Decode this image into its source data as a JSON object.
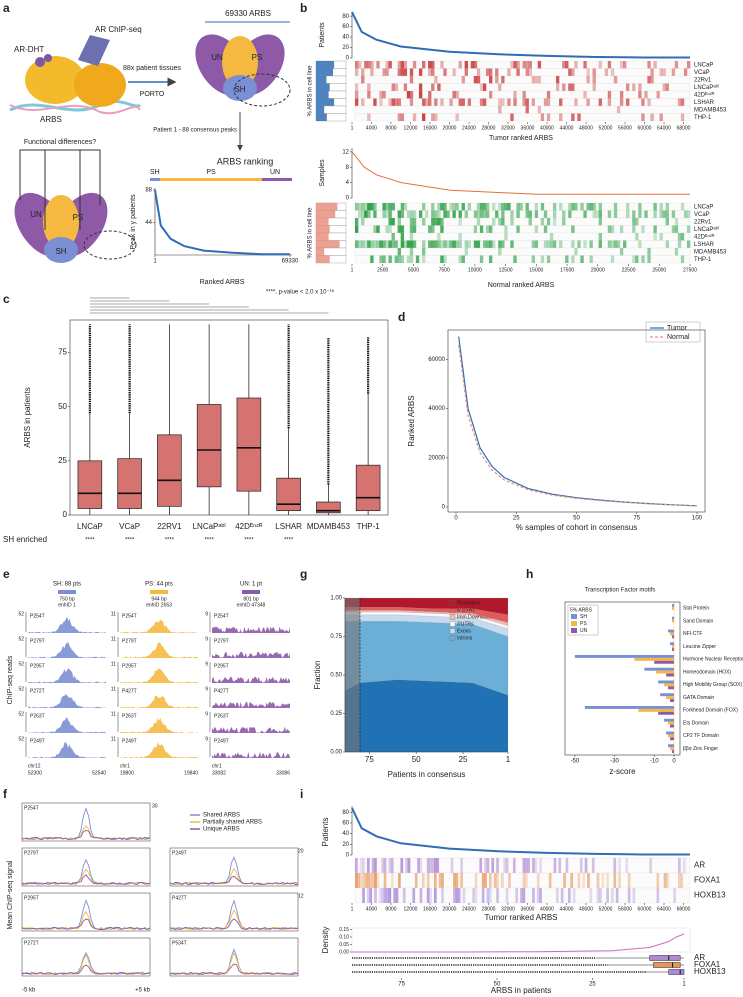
{
  "a": {
    "label": "a",
    "ar_chip": "AR ChIP-seq",
    "ar_dht": "AR-DHT",
    "arbs": "ARBS",
    "total": "69330 ARBS",
    "tissues": "88x patient tissues",
    "porto": "PORTO",
    "venn_top": [
      "UN",
      "PS",
      "SH"
    ],
    "venn_bottom": [
      "UN",
      "PS",
      "SH"
    ],
    "consensus": "Patient 1 - 88 consensus peaks",
    "functional": "Functional differences?",
    "ranking": "ARBS ranking",
    "bar_labels": [
      "SH",
      "PS",
      "UN"
    ],
    "y_label": "Peak in y patients",
    "x_label": "Ranked ARBS",
    "ylim": [
      0,
      88
    ],
    "yticks": [
      44,
      88
    ],
    "xlim": [
      1,
      69330
    ],
    "xticks": [
      1,
      69330
    ],
    "curve": {
      "x": [
        1,
        3000,
        8000,
        15000,
        25000,
        40000,
        55000,
        69330
      ],
      "y": [
        88,
        40,
        22,
        12,
        6,
        3,
        1,
        1
      ]
    }
  },
  "b": {
    "label": "b",
    "tumor": {
      "y_label": "Patients",
      "ylim": [
        0,
        88
      ],
      "yticks": [
        0,
        20,
        40,
        60,
        80
      ],
      "xlim": [
        1,
        69330
      ],
      "xticks": [
        1,
        4000,
        8000,
        12000,
        16000,
        20000,
        24000,
        28000,
        32000,
        36000,
        40000,
        44000,
        48000,
        52000,
        56000,
        60000,
        64000,
        68000
      ],
      "x_label": "Tumor ranked ARBS",
      "heat_label": "% ARBS in cell line",
      "cell_lines": [
        "LNCaP",
        "VCaP",
        "22Rv1",
        "LNCaPᵃᵇˡ",
        "42Dᴱⁿᶻᴿ",
        "LSHAR",
        "MDAMB453",
        "THP-1"
      ],
      "curve": {
        "x": [
          1,
          2000,
          5000,
          10000,
          20000,
          30000,
          40000,
          50000,
          60000,
          69330
        ],
        "y": [
          88,
          50,
          35,
          22,
          12,
          7,
          4,
          2,
          1,
          1
        ]
      }
    },
    "normal": {
      "y_label": "Samples",
      "ylim": [
        0,
        13
      ],
      "yticks": [
        0,
        4,
        8,
        12
      ],
      "xlim": [
        1,
        27500
      ],
      "xticks": [
        1,
        2500,
        5000,
        7500,
        10000,
        12500,
        15000,
        17500,
        20000,
        22500,
        25000,
        27500
      ],
      "x_label": "Normal ranked ARBS",
      "heat_label": "% ARBS in cell line",
      "cell_lines": [
        "LNCaP",
        "VCaP",
        "22Rv1",
        "LNCaPᵃᵇˡ",
        "42Dᴱⁿᶻᴿ",
        "LSHAR",
        "MDAMB453",
        "THP-1"
      ],
      "curve": {
        "x": [
          1,
          500,
          1000,
          2000,
          4000,
          8000,
          15000,
          27500
        ],
        "y": [
          12,
          10,
          8,
          6,
          4,
          2,
          1,
          1
        ]
      }
    }
  },
  "c": {
    "label": "c",
    "type": "box",
    "annotation": "****, p-value < 2.0 x 10⁻¹⁶",
    "y_label": "ARBS in patients",
    "color": "#d4736f",
    "ylim": [
      0,
      90
    ],
    "yticks": [
      0,
      25,
      50,
      75
    ],
    "categories": [
      "LNCaP",
      "VCaP",
      "22RV1",
      "LNCaPᵃᵇˡ",
      "42Dᴱⁿᶻᴿ",
      "LSHAR",
      "MDAMB453",
      "THP-1"
    ],
    "boxes": [
      {
        "low": 0,
        "q1": 3,
        "median": 10,
        "q3": 25,
        "high": 47,
        "outlier_max": 88
      },
      {
        "low": 0,
        "q1": 3,
        "median": 10,
        "q3": 26,
        "high": 47,
        "outlier_max": 88
      },
      {
        "low": 0,
        "q1": 4,
        "median": 16,
        "q3": 37,
        "high": 88,
        "outlier_max": 88
      },
      {
        "low": 0,
        "q1": 13,
        "median": 30,
        "q3": 51,
        "high": 88,
        "outlier_max": 88
      },
      {
        "low": 0,
        "q1": 11,
        "median": 31,
        "q3": 54,
        "high": 88,
        "outlier_max": 88
      },
      {
        "low": 0,
        "q1": 2,
        "median": 5,
        "q3": 17,
        "high": 40,
        "outlier_max": 88
      },
      {
        "low": 0,
        "q1": 1,
        "median": 2,
        "q3": 6,
        "high": 14,
        "outlier_max": 82
      },
      {
        "low": 0,
        "q1": 2,
        "median": 8,
        "q3": 23,
        "high": 56,
        "outlier_max": 82
      }
    ],
    "row_label": "SH enriched",
    "significance": [
      "****",
      "****",
      "****",
      "****",
      "****",
      "****",
      null,
      null
    ]
  },
  "d": {
    "label": "d",
    "type": "line",
    "y_label": "Ranked ARBS",
    "x_label": "% samples of cohort in consensus",
    "xlim": [
      0,
      100
    ],
    "ylim": [
      0,
      72000
    ],
    "xticks": [
      0,
      25,
      50,
      75,
      100
    ],
    "yticks": [
      0,
      20000,
      40000,
      60000
    ],
    "x": [
      1.1,
      5,
      10,
      15,
      20,
      30,
      40,
      50,
      60,
      70,
      80,
      90,
      100
    ],
    "series": [
      {
        "name": "Tumor",
        "color": "#2f6db5",
        "dash": false,
        "values": [
          69330,
          40000,
          24000,
          16500,
          12000,
          7500,
          5200,
          3800,
          2800,
          2000,
          1400,
          900,
          500
        ]
      },
      {
        "name": "Normal",
        "color": "#e8907e",
        "dash": true,
        "values": [
          66000,
          37000,
          22000,
          15000,
          11000,
          7000,
          4800,
          3500,
          2600,
          1900,
          1300,
          850,
          450
        ]
      }
    ]
  },
  "e": {
    "label": "e",
    "y_label": "ChIP-seq reads",
    "columns": [
      {
        "header": "SH: 88 pts",
        "width": "750 bp",
        "enh": "enhID 1",
        "color": "#7b8fd4",
        "scale": "52",
        "samples": [
          "P254T",
          "P279T",
          "P295T",
          "P272T",
          "P263T",
          "P249T"
        ],
        "chr": "chr12",
        "start": "52300",
        "end": "52540"
      },
      {
        "header": "PS: 44 pts",
        "width": "944 bp",
        "enh": "enhID 2653",
        "color": "#f5b942",
        "scale": "11",
        "samples": [
          "P254T",
          "P279T",
          "P295T",
          "P427T",
          "P263T",
          "P249T"
        ],
        "chr": "chr1",
        "start": "19800",
        "end": "19840"
      },
      {
        "header": "UN: 1 pt",
        "width": "801 bp",
        "enh": "enhID 47348",
        "color": "#8e5aa8",
        "scale": "9",
        "samples": [
          "P254T",
          "P279T",
          "P295T",
          "P427T",
          "P263T",
          "P249T"
        ],
        "chr": "chr1",
        "start": "33082",
        "end": "33086"
      }
    ]
  },
  "f": {
    "label": "f",
    "y_label": "Mean ChIP-seq signal",
    "legend": [
      "Shared ARBS",
      "Partially shared ARBS",
      "Unique ARBS"
    ],
    "left": [
      "P254T",
      "P279T",
      "P295T",
      "P272T"
    ],
    "right": [
      "P249T",
      "P427T",
      "P534T"
    ],
    "scales": [
      "30",
      "20",
      "12"
    ],
    "x_start": "-5 kb",
    "x_end": "+5 kb"
  },
  "g": {
    "label": "g",
    "type": "area",
    "y_label": "Fraction",
    "x_label": "Patients in consensus",
    "xlim": [
      88,
      1
    ],
    "ylim": [
      0,
      1
    ],
    "xticks": [
      75,
      50,
      25,
      1
    ],
    "threshold": 80,
    "yticks": [
      {
        "value": 0,
        "label": "0.00"
      },
      {
        "value": 0.25,
        "label": "0.25"
      },
      {
        "value": 0.5,
        "label": "0.50"
      },
      {
        "value": 0.75,
        "label": "0.75"
      },
      {
        "value": 1,
        "label": "1.00"
      }
    ],
    "x": [
      88,
      80,
      60,
      40,
      20,
      1
    ],
    "series": [
      {
        "name": "Intergenic Region",
        "color": "#2171b5",
        "values": [
          0.4,
          0.45,
          0.47,
          0.46,
          0.45,
          0.37
        ]
      },
      {
        "name": "Introns",
        "color": "#6baed6",
        "values": [
          0.45,
          0.4,
          0.38,
          0.38,
          0.38,
          0.38
        ]
      },
      {
        "name": "Exons",
        "color": "#c6dbef",
        "values": [
          0.04,
          0.04,
          0.04,
          0.04,
          0.04,
          0.05
        ]
      },
      {
        "name": "3'UTRs",
        "color": "#f7f7f7",
        "values": [
          0.02,
          0.02,
          0.02,
          0.02,
          0.02,
          0.02
        ]
      },
      {
        "name": "Imm.Downstream",
        "color": "#f4b6b6",
        "values": [
          0.01,
          0.01,
          0.01,
          0.01,
          0.01,
          0.02
        ]
      },
      {
        "name": "5' UTRs",
        "color": "#e05c5c",
        "values": [
          0.02,
          0.02,
          0.02,
          0.02,
          0.03,
          0.05
        ]
      },
      {
        "name": "Promoters",
        "color": "#b2182b",
        "values": [
          0.06,
          0.06,
          0.06,
          0.07,
          0.07,
          0.11
        ]
      }
    ]
  },
  "h": {
    "label": "h",
    "type": "bar",
    "title": "Transcription Factor motifs",
    "legend_title": "5% ARBS",
    "x_label": "z-score",
    "xlim": [
      -55,
      3
    ],
    "xticks": [
      -50,
      -30,
      -10,
      0
    ],
    "categories": [
      "Stat Protein",
      "Sand Domain",
      "NFI-CTF",
      "Leucine Zipper",
      "Hormone Nuclear Receptor",
      "Homeodomain (HOX)",
      "High Mobility Group (SOX)",
      "GATA Domain",
      "Forkhead Domain (FOX)",
      "Ets Domain",
      "CP2 TF Domain",
      "ββα Zinc Finger"
    ],
    "series": [
      {
        "name": "SH",
        "color": "#7b8fd4",
        "values": [
          -1,
          -1,
          -3,
          -2,
          -50,
          -15,
          -8,
          -7,
          -45,
          -5,
          -4,
          -3
        ]
      },
      {
        "name": "PS",
        "color": "#f5b942",
        "values": [
          -1,
          -1,
          -2,
          -1,
          -20,
          -9,
          -5,
          -4,
          -18,
          -3,
          -3,
          -2
        ]
      },
      {
        "name": "UN",
        "color": "#8e5aa8",
        "values": [
          0,
          0,
          -1,
          -1,
          -10,
          -4,
          -3,
          -2,
          -8,
          -2,
          -2,
          -1
        ]
      }
    ]
  },
  "i": {
    "label": "i",
    "y_label": "Patients",
    "ylim": [
      0,
      88
    ],
    "yticks": [
      0,
      20,
      40,
      60,
      80
    ],
    "xlim": [
      1,
      69330
    ],
    "xticks": [
      1,
      4000,
      8000,
      12000,
      16000,
      20000,
      24000,
      28000,
      32000,
      36000,
      40000,
      44000,
      48000,
      52000,
      56000,
      60000,
      64000,
      68000
    ],
    "x_label": "Tumor ranked ARBS",
    "curve": {
      "x": [
        1,
        2000,
        5000,
        10000,
        20000,
        30000,
        40000,
        50000,
        60000,
        69330
      ],
      "y": [
        88,
        50,
        35,
        22,
        12,
        7,
        4,
        2,
        1,
        1
      ]
    },
    "tracks": [
      "AR",
      "FOXA1",
      "HOXB13"
    ],
    "track_colors": [
      "#b08ad0",
      "#e8965a",
      "#a98ad6"
    ],
    "density": {
      "y_label": "Density",
      "ylim": [
        0,
        0.16
      ],
      "yticks": [
        {
          "value": 0,
          "label": "0.00"
        },
        {
          "value": 0.05,
          "label": "0.05"
        },
        {
          "value": 0.1,
          "label": "0.10"
        },
        {
          "value": 0.15,
          "label": "0.15"
        }
      ],
      "x": [
        88,
        60,
        40,
        20,
        10,
        5,
        3,
        1
      ],
      "values": [
        0,
        0,
        0.002,
        0.008,
        0.03,
        0.07,
        0.1,
        0.12
      ]
    },
    "box": {
      "x_label": "ARBS in patients",
      "xlim": [
        88,
        1
      ],
      "xticks": [
        75,
        50,
        25,
        1
      ],
      "boxes": [
        {
          "low": 1,
          "q1": 2,
          "median": 5,
          "q3": 10,
          "high": 24,
          "outlier_max": 88
        },
        {
          "low": 1,
          "q1": 2,
          "median": 4,
          "q3": 9,
          "high": 21,
          "outlier_max": 88
        },
        {
          "low": 1,
          "q1": 1,
          "median": 2,
          "q3": 5,
          "high": 11,
          "outlier_max": 88
        }
      ]
    }
  }
}
